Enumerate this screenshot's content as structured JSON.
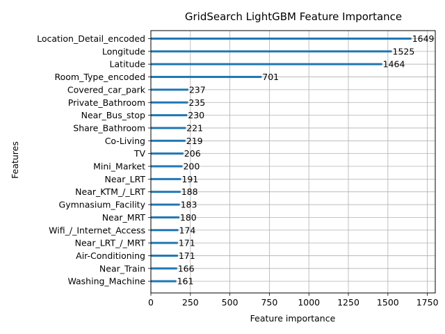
{
  "chart_data": {
    "type": "bar",
    "orientation": "horizontal",
    "title": "GridSearch LightGBM Feature Importance",
    "xlabel": "Feature importance",
    "ylabel": "Features",
    "xlim": [
      0,
      1800
    ],
    "xticks": [
      0,
      250,
      500,
      750,
      1000,
      1250,
      1500,
      1750
    ],
    "grid": true,
    "bar_color": "#1f77b4",
    "categories": [
      "Location_Detail_encoded",
      "Longitude",
      "Latitude",
      "Room_Type_encoded",
      "Covered_car_park",
      "Private_Bathroom",
      "Near_Bus_stop",
      "Share_Bathroom",
      "Co-Living",
      "TV",
      "Mini_Market",
      "Near_LRT",
      "Near_KTM_/_LRT",
      "Gymnasium_Facility",
      "Near_MRT",
      "Wifi_/_Internet_Access",
      "Near_LRT_/_MRT",
      "Air-Conditioning",
      "Near_Train",
      "Washing_Machine"
    ],
    "values": [
      1649,
      1525,
      1464,
      701,
      237,
      235,
      230,
      221,
      219,
      206,
      200,
      191,
      188,
      183,
      180,
      174,
      171,
      171,
      166,
      161
    ]
  }
}
